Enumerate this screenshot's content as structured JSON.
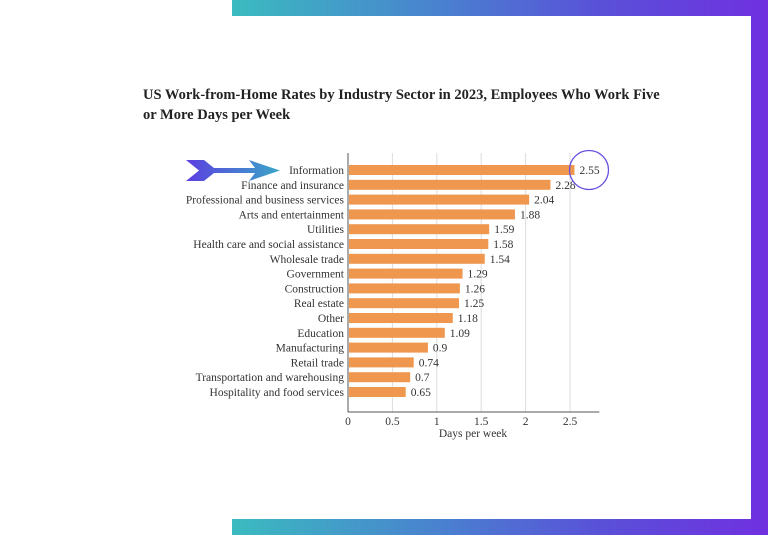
{
  "chart_data": {
    "type": "bar",
    "orientation": "horizontal",
    "title": "US Work-from-Home Rates by Industry Sector in 2023, Employees Who Work Five or More Days per Week",
    "xlabel": "Days per week",
    "ylabel": "",
    "xlim": [
      0,
      2.83
    ],
    "xticks": [
      "0",
      "0.5",
      "1",
      "1.5",
      "2",
      "2.5"
    ],
    "grid": "vertical",
    "bar_color": "#f0974f",
    "categories": [
      "Information",
      "Finance and insurance",
      "Professional and business services",
      "Arts and entertainment",
      "Utilities",
      "Health care and social assistance",
      "Wholesale trade",
      "Government",
      "Construction",
      "Real estate",
      "Other",
      "Education",
      "Manufacturing",
      "Retail trade",
      "Transportation and warehousing",
      "Hospitality and food services"
    ],
    "values": [
      2.55,
      2.28,
      2.04,
      1.88,
      1.59,
      1.58,
      1.54,
      1.29,
      1.26,
      1.25,
      1.18,
      1.09,
      0.9,
      0.74,
      0.7,
      0.65
    ],
    "value_labels": [
      "2.55",
      "2.28",
      "2.04",
      "1.88",
      "1.59",
      "1.58",
      "1.54",
      "1.29",
      "1.26",
      "1.25",
      "1.18",
      "1.09",
      "0.9",
      "0.74",
      "0.7",
      "0.65"
    ],
    "annotations": {
      "highlight": "Information",
      "arrow_icon": "chevron-arrow-icon",
      "circle_color": "#6a4fe0"
    }
  },
  "frame": {
    "gradient_start": "#3bbbc0",
    "gradient_end": "#7030e0"
  }
}
